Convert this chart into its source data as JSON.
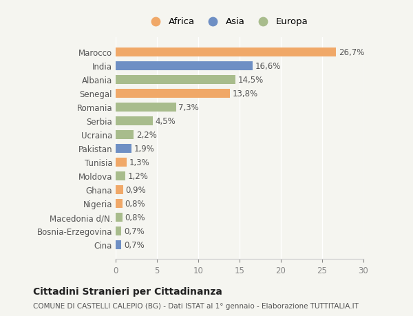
{
  "countries": [
    "Marocco",
    "India",
    "Albania",
    "Senegal",
    "Romania",
    "Serbia",
    "Ucraina",
    "Pakistan",
    "Tunisia",
    "Moldova",
    "Ghana",
    "Nigeria",
    "Macedonia d/N.",
    "Bosnia-Erzegovina",
    "Cina"
  ],
  "values": [
    26.7,
    16.6,
    14.5,
    13.8,
    7.3,
    4.5,
    2.2,
    1.9,
    1.3,
    1.2,
    0.9,
    0.8,
    0.8,
    0.7,
    0.7
  ],
  "labels": [
    "26,7%",
    "16,6%",
    "14,5%",
    "13,8%",
    "7,3%",
    "4,5%",
    "2,2%",
    "1,9%",
    "1,3%",
    "1,2%",
    "0,9%",
    "0,8%",
    "0,8%",
    "0,7%",
    "0,7%"
  ],
  "continents": [
    "Africa",
    "Asia",
    "Europa",
    "Africa",
    "Europa",
    "Europa",
    "Europa",
    "Asia",
    "Africa",
    "Europa",
    "Africa",
    "Africa",
    "Europa",
    "Europa",
    "Asia"
  ],
  "colors": {
    "Africa": "#F0A868",
    "Asia": "#6E8FC4",
    "Europa": "#A8BC8C"
  },
  "xlim": [
    0,
    30
  ],
  "xticks": [
    0,
    5,
    10,
    15,
    20,
    25,
    30
  ],
  "title_bold": "Cittadini Stranieri per Cittadinanza",
  "subtitle": "COMUNE DI CASTELLI CALEPIO (BG) - Dati ISTAT al 1° gennaio - Elaborazione TUTTITALIA.IT",
  "background_color": "#f5f5f0",
  "bar_height": 0.65,
  "label_fontsize": 8.5,
  "tick_fontsize": 8.5
}
